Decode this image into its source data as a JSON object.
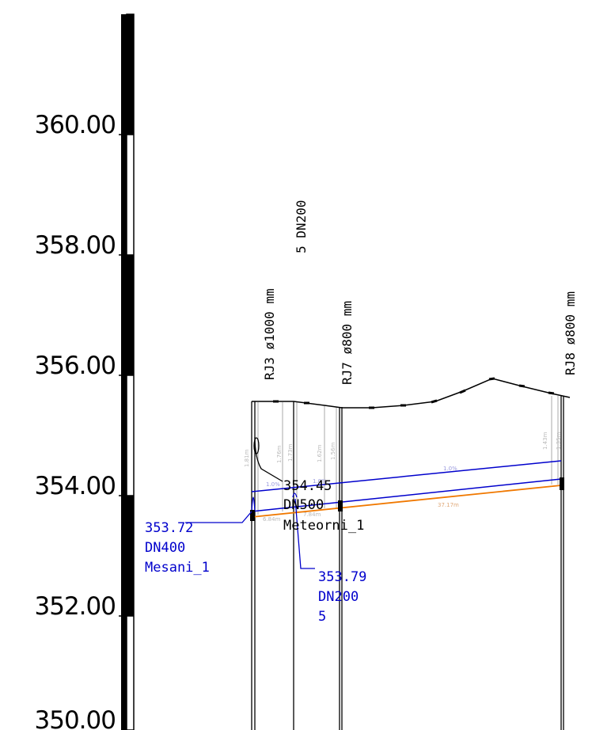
{
  "scale": {
    "elevations": [
      "360.00",
      "358.00",
      "356.00",
      "354.00",
      "352.00",
      "350.00"
    ]
  },
  "manholes": [
    {
      "id": "rj3",
      "label": "RJ3  ø1000 mm"
    },
    {
      "id": "pipe5",
      "label": "5 DN200"
    },
    {
      "id": "rj7",
      "label": "RJ7  ø800 mm"
    },
    {
      "id": "rj8",
      "label": "RJ8  ø800 mm"
    }
  ],
  "callouts": {
    "meteorni": {
      "elevation": "354.45",
      "diameter": "DN500",
      "name": "Meteorni_1"
    },
    "mesani": {
      "elevation": "353.72",
      "diameter": "DN400",
      "name": "Mesani_1"
    },
    "pipe5": {
      "elevation": "353.79",
      "diameter": "DN200",
      "name": "5"
    }
  },
  "depths": {
    "rj3": "1.81m",
    "p5a": "1.76m",
    "p5b": "1.73m",
    "rj7a": "1.62m",
    "rj7b": "1.56m",
    "rj8a": "1.43m",
    "rj8b": "1.35m"
  },
  "segments": {
    "slope_left": "1.0%",
    "slope_mid": "1.0%",
    "slope_right": "1.0%",
    "len_a": "6.84m",
    "len_b": "7.84m",
    "len_c": "37.17m"
  },
  "colors": {
    "sewer": "#0000cc",
    "storm": "#f07800",
    "terrain": "#000000",
    "guides": "#b8b8b8"
  }
}
